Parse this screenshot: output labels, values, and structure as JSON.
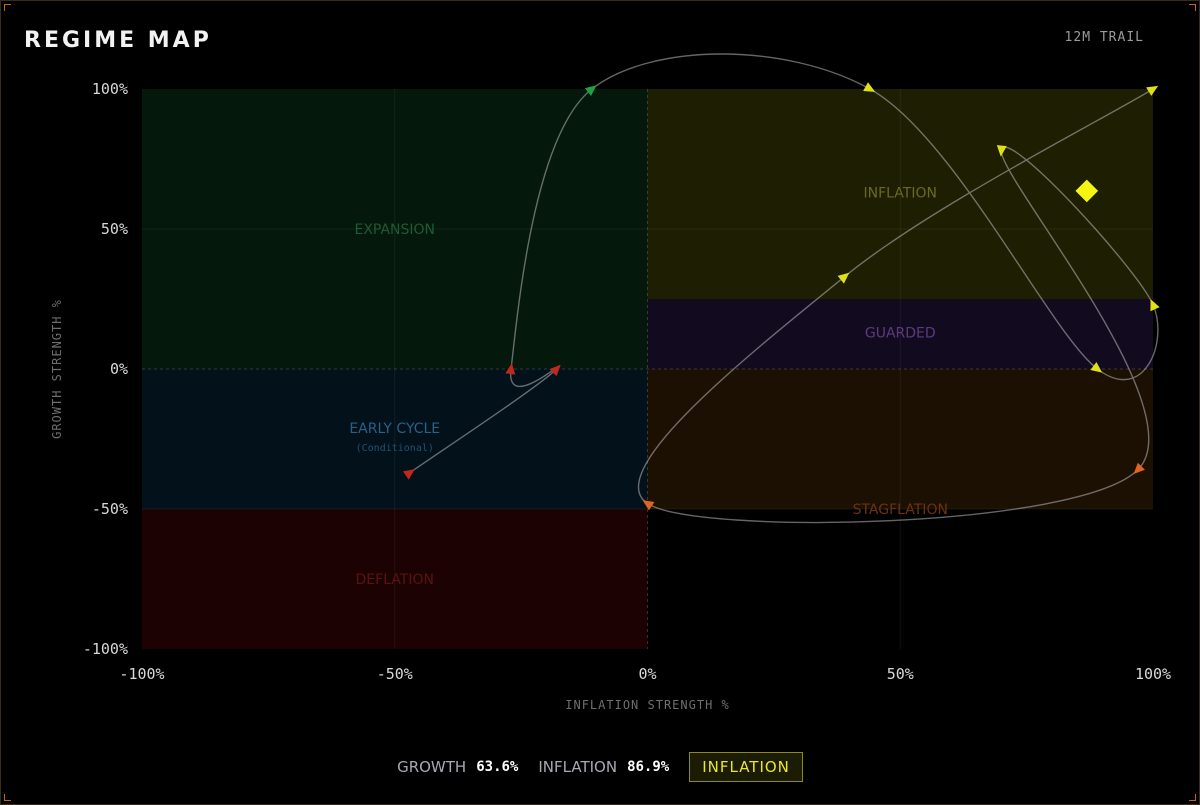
{
  "header": {
    "title": "REGIME MAP",
    "trail_label": "12M TRAIL"
  },
  "footer": {
    "growth_label": "GROWTH",
    "growth_value": "63.6%",
    "inflation_label": "INFLATION",
    "inflation_value": "86.9%",
    "regime": "INFLATION"
  },
  "colors": {
    "expansion": "#04180c",
    "inflation": "#1e1e02",
    "guarded": "#120b20",
    "early_cycle": "#03121a",
    "deflation": "#1c0203",
    "stagflation": "#1c1003",
    "current_marker": "#f5f512"
  },
  "chart_data": {
    "type": "scatter",
    "xlabel": "INFLATION STRENGTH %",
    "ylabel": "GROWTH STRENGTH %",
    "xlim": [
      -100,
      100
    ],
    "ylim": [
      -100,
      100
    ],
    "x_ticks": [
      -100,
      -50,
      0,
      50,
      100
    ],
    "y_ticks": [
      -100,
      -50,
      0,
      50,
      100
    ],
    "x_tick_labels": [
      "-100%",
      "-50%",
      "0%",
      "50%",
      "100%"
    ],
    "y_tick_labels": [
      "-100%",
      "-50%",
      "0%",
      "50%",
      "100%"
    ],
    "grid": true,
    "regions": [
      {
        "name": "EXPANSION",
        "x": [
          -100,
          0
        ],
        "y": [
          0,
          100
        ],
        "label_at": [
          -50,
          50
        ],
        "fill": "#04180c",
        "text_color": "#1e5a32"
      },
      {
        "name": "INFLATION",
        "x": [
          0,
          100
        ],
        "y": [
          25,
          100
        ],
        "label_at": [
          50,
          63
        ],
        "fill": "#1e1e02",
        "text_color": "#6a6a1c"
      },
      {
        "name": "GUARDED",
        "x": [
          0,
          100
        ],
        "y": [
          0,
          25
        ],
        "label_at": [
          50,
          13
        ],
        "fill": "#120b20",
        "text_color": "#5c3a7e"
      },
      {
        "name": "EARLY CYCLE",
        "sub": "(Conditional)",
        "x": [
          -100,
          0
        ],
        "y": [
          -50,
          0
        ],
        "label_at": [
          -50,
          -21
        ],
        "fill": "#03121a",
        "text_color": "#2a5f86"
      },
      {
        "name": "DEFLATION",
        "x": [
          -100,
          0
        ],
        "y": [
          -100,
          -50
        ],
        "label_at": [
          -50,
          -75
        ],
        "fill": "#1c0203",
        "text_color": "#5a1212"
      },
      {
        "name": "STAGFLATION",
        "x": [
          0,
          100
        ],
        "y": [
          -50,
          0
        ],
        "label_at": [
          50,
          -50
        ],
        "fill": "#1c1003",
        "text_color": "#6a3212"
      }
    ],
    "trail": [
      {
        "x": -47,
        "y": -37,
        "color": "#c0281e"
      },
      {
        "x": -18,
        "y": 0,
        "color": "#c0281e"
      },
      {
        "x": -27,
        "y": 0,
        "color": "#c0281e"
      },
      {
        "x": -11,
        "y": 100,
        "color": "#1fa046"
      },
      {
        "x": 44,
        "y": 100,
        "color": "#e0e01a"
      },
      {
        "x": 89,
        "y": 0,
        "color": "#e0e01a"
      },
      {
        "x": 100,
        "y": 23,
        "color": "#e0e01a"
      },
      {
        "x": 70,
        "y": 78,
        "color": "#e0e01a"
      },
      {
        "x": 97,
        "y": -36,
        "color": "#e0641e"
      },
      {
        "x": 0,
        "y": -48,
        "color": "#e0641e"
      },
      {
        "x": 39,
        "y": 33,
        "color": "#e0e01a"
      },
      {
        "x": 100,
        "y": 100,
        "color": "#e0e01a"
      }
    ],
    "current": {
      "x": 86.9,
      "y": 63.6,
      "color": "#f5f512"
    }
  }
}
